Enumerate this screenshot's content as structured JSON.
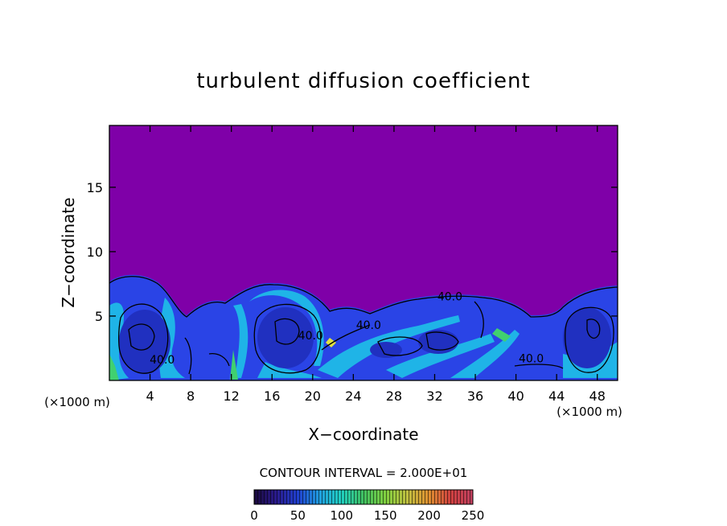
{
  "chart_data": {
    "type": "heatmap",
    "title": "turbulent diffusion coefficient",
    "xlabel": "X−coordinate",
    "ylabel": "Z−coordinate",
    "x_unit": "(×1000 m)",
    "x_unit_right": "(×1000 m)",
    "xlim": [
      0,
      50
    ],
    "ylim": [
      0,
      19.8
    ],
    "x_ticks": [
      4,
      8,
      12,
      16,
      20,
      24,
      28,
      32,
      36,
      40,
      44,
      48
    ],
    "y_ticks": [
      5,
      10,
      15
    ],
    "contour_interval_text": "CONTOUR INTERVAL = 2.000E+01",
    "contour_labels": [
      {
        "text": "40.0",
        "x": 5.2,
        "z": 1.3
      },
      {
        "text": "40.0",
        "x": 19.8,
        "z": 3.2
      },
      {
        "text": "40.0",
        "x": 25.5,
        "z": 4.0
      },
      {
        "text": "40.0",
        "x": 33.5,
        "z": 6.2
      },
      {
        "text": "40.0",
        "x": 41.5,
        "z": 1.4
      }
    ],
    "colorbar": {
      "min": 0,
      "max": 250,
      "ticks": [
        0,
        50,
        100,
        150,
        200,
        250
      ],
      "colors": [
        "#1a0a3c",
        "#2a1a8c",
        "#2040d0",
        "#20a0e0",
        "#20d0c0",
        "#40c060",
        "#80d040",
        "#c0c040",
        "#e09030",
        "#d04040",
        "#c04060"
      ]
    },
    "background_color": "#7f00a8",
    "field_color": "#2a40e0"
  }
}
